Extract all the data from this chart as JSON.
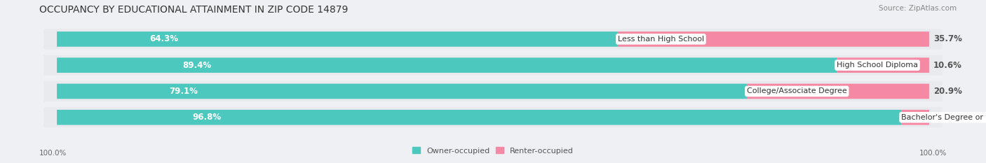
{
  "title": "OCCUPANCY BY EDUCATIONAL ATTAINMENT IN ZIP CODE 14879",
  "source": "Source: ZipAtlas.com",
  "categories": [
    "Less than High School",
    "High School Diploma",
    "College/Associate Degree",
    "Bachelor's Degree or higher"
  ],
  "owner_pct": [
    64.3,
    89.4,
    79.1,
    96.8
  ],
  "renter_pct": [
    35.7,
    10.6,
    20.9,
    3.2
  ],
  "owner_color": "#4dc8be",
  "renter_color": "#f589a3",
  "background_color": "#eef0f4",
  "bar_background": "#e8eaee",
  "title_fontsize": 10,
  "source_fontsize": 7.5,
  "label_fontsize": 8.5,
  "cat_fontsize": 8,
  "tick_fontsize": 7.5,
  "legend_fontsize": 8,
  "left_label": "100.0%",
  "right_label": "100.0%"
}
